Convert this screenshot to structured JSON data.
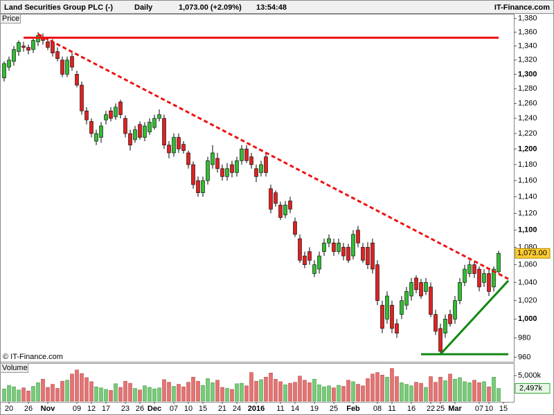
{
  "chart_data": {
    "type": "candlestick",
    "title": "Land Securities Group PLC (-)",
    "period": "Daily",
    "change": "1,073.00 (+2.09%)",
    "time": "13:54:48",
    "brand": "IT-Finance.com",
    "watermark": "© IT-Finance.com",
    "price_label": "Price",
    "volume_label": "Volume",
    "log_scale": true,
    "up_color": "#33bb33",
    "down_color": "#dd2222",
    "up_volume_color": "#77cc77",
    "down_volume_color": "#e57373",
    "categories": [
      null,
      "20",
      null,
      null,
      null,
      "26",
      null,
      null,
      null,
      "Nov",
      null,
      null,
      null,
      null,
      null,
      "09",
      null,
      null,
      "12",
      null,
      null,
      "17",
      null,
      null,
      null,
      "23",
      null,
      null,
      "26",
      null,
      null,
      "Dec",
      null,
      null,
      null,
      "07",
      null,
      null,
      "10",
      null,
      null,
      "15",
      null,
      null,
      null,
      "21",
      null,
      null,
      "24",
      null,
      null,
      null,
      "2016",
      null,
      null,
      null,
      null,
      "11",
      null,
      null,
      "14",
      null,
      null,
      null,
      "19",
      null,
      null,
      null,
      "25",
      null,
      null,
      null,
      "Feb",
      null,
      null,
      null,
      null,
      "08",
      null,
      null,
      "11",
      null,
      null,
      null,
      "16",
      null,
      null,
      null,
      "22",
      null,
      "25",
      null,
      null,
      "Mar",
      null,
      null,
      null,
      null,
      "07",
      null,
      "10",
      null,
      null,
      "15"
    ],
    "ohlc": [
      [
        1295,
        1318,
        1290,
        1315
      ],
      [
        1310,
        1325,
        1305,
        1320
      ],
      [
        1318,
        1340,
        1312,
        1335
      ],
      [
        1332,
        1348,
        1326,
        1345
      ],
      [
        1340,
        1346,
        1332,
        1338
      ],
      [
        1338,
        1342,
        1328,
        1334
      ],
      [
        1335,
        1352,
        1330,
        1348
      ],
      [
        1346,
        1360,
        1340,
        1355
      ],
      [
        1352,
        1358,
        1342,
        1348
      ],
      [
        1346,
        1350,
        1334,
        1338
      ],
      [
        1345,
        1350,
        1325,
        1330
      ],
      [
        1332,
        1338,
        1318,
        1322
      ],
      [
        1320,
        1325,
        1296,
        1300
      ],
      [
        1300,
        1325,
        1296,
        1320
      ],
      [
        1325,
        1330,
        1305,
        1310
      ],
      [
        1300,
        1305,
        1282,
        1285
      ],
      [
        1285,
        1290,
        1245,
        1250
      ],
      [
        1250,
        1255,
        1232,
        1238
      ],
      [
        1236,
        1240,
        1215,
        1220
      ],
      [
        1210,
        1225,
        1205,
        1220
      ],
      [
        1215,
        1235,
        1208,
        1230
      ],
      [
        1238,
        1250,
        1232,
        1245
      ],
      [
        1250,
        1255,
        1236,
        1240
      ],
      [
        1242,
        1260,
        1238,
        1255
      ],
      [
        1262,
        1265,
        1240,
        1245
      ],
      [
        1240,
        1244,
        1215,
        1220
      ],
      [
        1220,
        1225,
        1198,
        1205
      ],
      [
        1212,
        1230,
        1208,
        1225
      ],
      [
        1232,
        1236,
        1212,
        1215
      ],
      [
        1215,
        1235,
        1210,
        1230
      ],
      [
        1222,
        1240,
        1218,
        1235
      ],
      [
        1228,
        1245,
        1225,
        1240
      ],
      [
        1240,
        1252,
        1236,
        1245
      ],
      [
        1240,
        1245,
        1200,
        1205
      ],
      [
        1205,
        1210,
        1188,
        1195
      ],
      [
        1195,
        1220,
        1190,
        1215
      ],
      [
        1215,
        1220,
        1195,
        1200
      ],
      [
        1206,
        1210,
        1194,
        1198
      ],
      [
        1195,
        1198,
        1175,
        1180
      ],
      [
        1180,
        1184,
        1150,
        1155
      ],
      [
        1160,
        1165,
        1140,
        1145
      ],
      [
        1145,
        1165,
        1140,
        1160
      ],
      [
        1160,
        1190,
        1155,
        1185
      ],
      [
        1180,
        1205,
        1175,
        1195
      ],
      [
        1188,
        1195,
        1170,
        1175
      ],
      [
        1175,
        1180,
        1160,
        1165
      ],
      [
        1165,
        1182,
        1160,
        1175
      ],
      [
        1180,
        1185,
        1164,
        1170
      ],
      [
        1170,
        1190,
        1165,
        1185
      ],
      [
        1185,
        1205,
        1180,
        1200
      ],
      [
        1200,
        1205,
        1182,
        1185
      ],
      [
        1190,
        1195,
        1175,
        1180
      ],
      [
        1175,
        1180,
        1158,
        1165
      ],
      [
        1170,
        1185,
        1165,
        1180
      ],
      [
        1190,
        1195,
        1165,
        1170
      ],
      [
        1150,
        1155,
        1120,
        1125
      ],
      [
        1145,
        1148,
        1128,
        1132
      ],
      [
        1130,
        1134,
        1112,
        1115
      ],
      [
        1118,
        1135,
        1114,
        1130
      ],
      [
        1135,
        1140,
        1120,
        1125
      ],
      [
        1110,
        1115,
        1092,
        1095
      ],
      [
        1090,
        1095,
        1062,
        1065
      ],
      [
        1070,
        1075,
        1056,
        1060
      ],
      [
        1075,
        1080,
        1060,
        1065
      ],
      [
        1050,
        1065,
        1046,
        1060
      ],
      [
        1055,
        1075,
        1050,
        1070
      ],
      [
        1075,
        1090,
        1070,
        1085
      ],
      [
        1085,
        1095,
        1080,
        1090
      ],
      [
        1085,
        1090,
        1070,
        1075
      ],
      [
        1075,
        1090,
        1072,
        1085
      ],
      [
        1080,
        1085,
        1065,
        1070
      ],
      [
        1080,
        1084,
        1062,
        1065
      ],
      [
        1070,
        1100,
        1066,
        1095
      ],
      [
        1100,
        1105,
        1080,
        1085
      ],
      [
        1080,
        1085,
        1062,
        1065
      ],
      [
        1080,
        1086,
        1055,
        1060
      ],
      [
        1085,
        1090,
        1050,
        1055
      ],
      [
        1060,
        1065,
        1015,
        1020
      ],
      [
        1015,
        1020,
        985,
        990
      ],
      [
        1000,
        1030,
        995,
        1025
      ],
      [
        1015,
        1020,
        985,
        990
      ],
      [
        995,
        1000,
        980,
        985
      ],
      [
        1005,
        1025,
        1000,
        1020
      ],
      [
        1015,
        1035,
        1010,
        1030
      ],
      [
        1025,
        1045,
        1020,
        1040
      ],
      [
        1045,
        1048,
        1028,
        1032
      ],
      [
        1040,
        1044,
        1022,
        1025
      ],
      [
        1030,
        1045,
        1026,
        1040
      ],
      [
        1035,
        1040,
        1002,
        1005
      ],
      [
        1005,
        1010,
        983,
        987
      ],
      [
        990,
        995,
        963,
        966
      ],
      [
        985,
        1005,
        980,
        1000
      ],
      [
        1005,
        1010,
        992,
        995
      ],
      [
        1000,
        1025,
        995,
        1020
      ],
      [
        1020,
        1045,
        1016,
        1040
      ],
      [
        1040,
        1060,
        1036,
        1055
      ],
      [
        1050,
        1065,
        1046,
        1060
      ],
      [
        1060,
        1063,
        1045,
        1050
      ],
      [
        1055,
        1058,
        1030,
        1035
      ],
      [
        1040,
        1055,
        1035,
        1050
      ],
      [
        1050,
        1054,
        1025,
        1030
      ],
      [
        1035,
        1058,
        1030,
        1055
      ],
      [
        1052,
        1076,
        1050,
        1073
      ],
      null
    ],
    "volume": [
      2400,
      3100,
      2800,
      2200,
      2600,
      2000,
      2900,
      3600,
      4300,
      2700,
      3300,
      2500,
      3900,
      4100,
      5300,
      6100,
      5400,
      4600,
      3800,
      2800,
      2600,
      2300,
      2100,
      3400,
      2700,
      3900,
      3500,
      2500,
      2200,
      3000,
      2700,
      2400,
      2600,
      4200,
      3700,
      2900,
      3300,
      2800,
      3700,
      4700,
      3900,
      3100,
      4400,
      3600,
      4100,
      2700,
      2500,
      2300,
      3400,
      3500,
      3000,
      5600,
      3900,
      4200,
      4700,
      5500,
      4300,
      3800,
      3200,
      3500,
      3700,
      4900,
      4100,
      3600,
      4300,
      3200,
      2800,
      3000,
      2600,
      3100,
      2900,
      4100,
      3800,
      3300,
      3000,
      4400,
      5300,
      5600,
      5100,
      4700,
      6400,
      4800,
      3600,
      3300,
      3000,
      3700,
      3500,
      2700,
      4800,
      3700,
      4700,
      4000,
      5300,
      4300,
      4600,
      3800,
      3600,
      4100,
      3600,
      3800,
      2800,
      4700,
      2497,
      null
    ],
    "ylim": [
      956,
      1387
    ],
    "yticks": [
      960,
      980,
      {
        "value": 1000,
        "label": "1,000"
      },
      {
        "value": 1020,
        "label": "1,020"
      },
      {
        "value": 1040,
        "label": "1,040"
      },
      {
        "value": 1060,
        "label": "1,060"
      },
      {
        "value": 1080,
        "label": "1,080"
      },
      {
        "value": 1100,
        "label": "1,100"
      },
      {
        "value": 1120,
        "label": "1,120"
      },
      {
        "value": 1140,
        "label": "1,140"
      },
      {
        "value": 1160,
        "label": "1,160"
      },
      {
        "value": 1180,
        "label": "1,180"
      },
      {
        "value": 1200,
        "label": "1,200"
      },
      {
        "value": 1220,
        "label": "1,220"
      },
      {
        "value": 1240,
        "label": "1,240"
      },
      {
        "value": 1260,
        "label": "1,260"
      },
      {
        "value": 1280,
        "label": "1,280"
      },
      {
        "value": 1300,
        "label": "1,300"
      },
      {
        "value": 1320,
        "label": "1,320"
      },
      {
        "value": 1340,
        "label": "1,340"
      },
      {
        "value": 1360,
        "label": "1,360"
      },
      {
        "value": 1380,
        "label": "1,380"
      }
    ],
    "y2lim": [
      0,
      7160
    ],
    "y2ticks": [
      {
        "value": 5000,
        "label": "5,000k"
      }
    ],
    "last_price": {
      "value": 1073,
      "label": "1,073.00"
    },
    "last_volume": {
      "value": 2497,
      "label": "2,497k"
    },
    "trendlines": [
      {
        "color": "#ee1111",
        "dashed": false,
        "from": [
          4,
          1352
        ],
        "to": [
          102,
          1352
        ]
      },
      {
        "color": "#ee1111",
        "dashed": true,
        "from": [
          7,
          1357
        ],
        "to": [
          104,
          1044
        ]
      },
      {
        "color": "#118811",
        "dashed": false,
        "from": [
          90,
          963
        ],
        "to": [
          104,
          1042
        ]
      },
      {
        "color": "#118811",
        "dashed": false,
        "from": [
          86,
          963
        ],
        "to": [
          104,
          963
        ]
      }
    ]
  }
}
